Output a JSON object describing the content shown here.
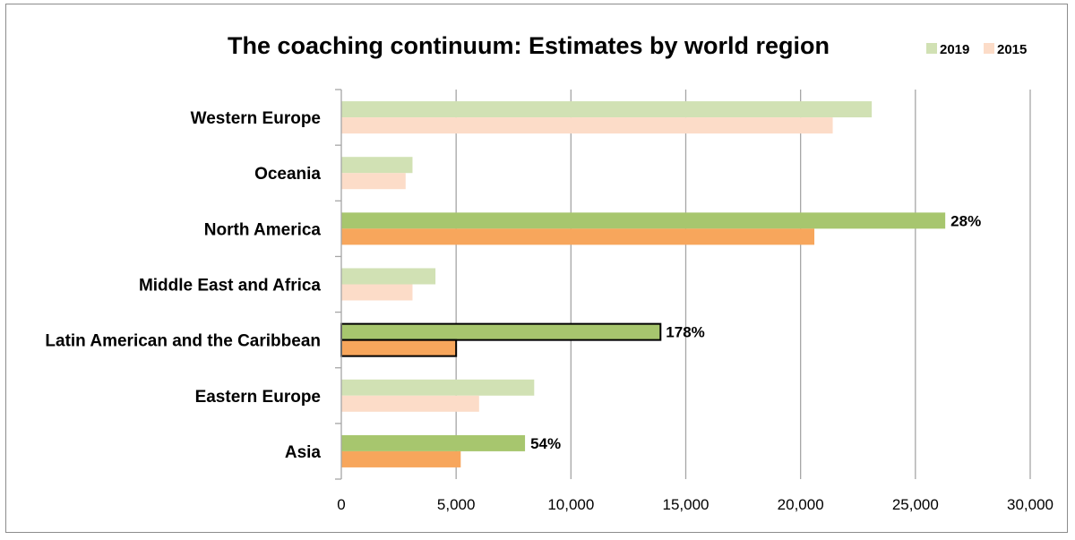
{
  "chart_data": {
    "type": "bar",
    "orientation": "horizontal",
    "title": "The coaching continuum: Estimates by world region",
    "xlabel": "",
    "ylabel": "",
    "categories": [
      "Western Europe",
      "Oceania",
      "North America",
      "Middle East and Africa",
      "Latin American and the Caribbean",
      "Eastern Europe",
      "Asia"
    ],
    "series": [
      {
        "name": "2019",
        "values": [
          23100,
          3100,
          26300,
          4100,
          13900,
          8400,
          8000
        ]
      },
      {
        "name": "2015",
        "values": [
          21400,
          2800,
          20600,
          3100,
          5000,
          6000,
          5200
        ]
      }
    ],
    "xlim": [
      0,
      30000
    ],
    "xticks": [
      0,
      5000,
      10000,
      15000,
      20000,
      25000,
      30000
    ],
    "xtick_labels": [
      "0",
      "5,000",
      "10,000",
      "15,000",
      "20,000",
      "25,000",
      "30,000"
    ],
    "grid": true,
    "legend_position": "top-right",
    "highlighted": [
      "North America",
      "Latin American and the Caribbean",
      "Asia"
    ],
    "outlined": [
      "Latin American and the Caribbean"
    ],
    "annotations": [
      {
        "category": "North America",
        "text": "28%"
      },
      {
        "category": "Latin American and the Caribbean",
        "text": "178%"
      },
      {
        "category": "Asia",
        "text": "54%"
      }
    ],
    "colors": {
      "2019": "#a7c66e",
      "2015": "#f7a65c",
      "2019_faded": "#d1e1b4",
      "2015_faded": "#fcdcc8",
      "grid": "#a6a6a6",
      "outline": "#000000"
    }
  }
}
